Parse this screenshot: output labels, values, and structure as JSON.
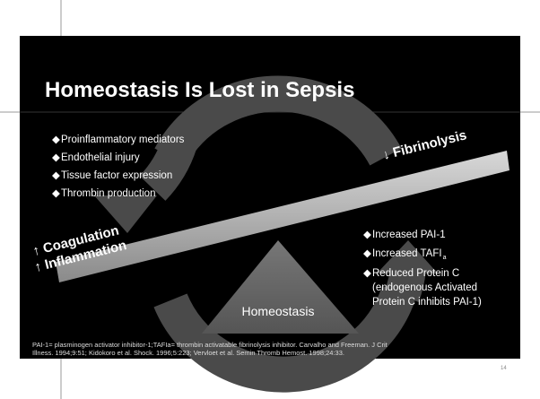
{
  "slide": {
    "title": "Homeostasis Is Lost in Sepsis",
    "left_bullets": [
      "Proinflammatory mediators",
      "Endothelial injury",
      "Tissue factor expression",
      "Thrombin production"
    ],
    "fibrinolysis": "↓ Fibrinolysis",
    "coagulation": "↑ Coagulation",
    "inflammation": "↑ Inflammation",
    "right_bullets": {
      "pai": "Increased PAI-1",
      "tafi": "Increased TAFI",
      "tafi_sub": "a",
      "protein_c": [
        "Reduced Protein C",
        "(endogenous Activated",
        "Protein C inhibits PAI-1)"
      ]
    },
    "homeostasis": "Homeostasis",
    "footnote": [
      "PAI-1= plasminogen activator inhibitor-1;TAFIa= thrombin activatable fibrinolysis inhibitor.  Carvalho and Freeman. J Crit",
      "Illness. 1994;9:51; Kidokoro et al. Shock. 1996;5:223; Vervloet et al. Semin Thromb Hemost. 1998;24:33."
    ],
    "page_number": "14"
  }
}
